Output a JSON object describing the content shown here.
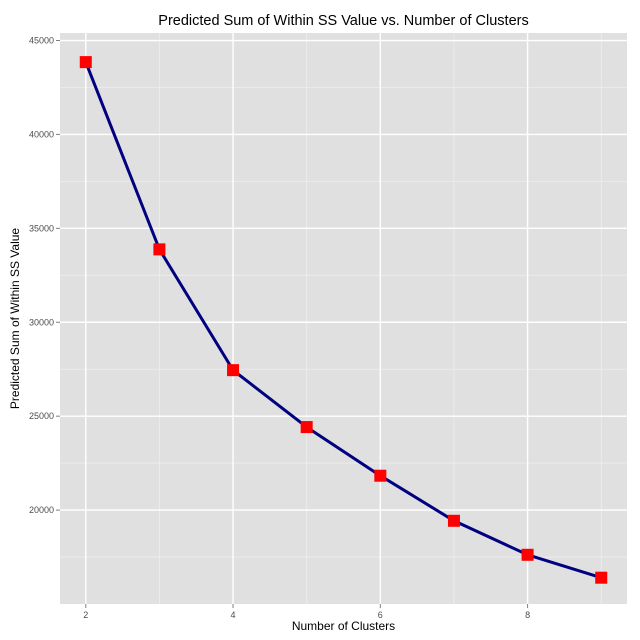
{
  "chart_data": {
    "type": "line",
    "title": "Predicted Sum of Within SS Value vs. Number of Clusters",
    "xlabel": "Number of Clusters",
    "ylabel": "Predicted Sum of Within SS Value",
    "x": [
      2,
      3,
      4,
      5,
      6,
      7,
      8,
      9
    ],
    "series": [
      {
        "values": [
          43850,
          33880,
          27450,
          24420,
          21830,
          19430,
          17620,
          16400
        ]
      }
    ],
    "xlim": [
      1.65,
      9.35
    ],
    "ylim": [
      15000,
      45400
    ],
    "x_ticks": [
      2,
      4,
      6,
      8
    ],
    "x_tick_labels": [
      "2",
      "4",
      "6",
      "8"
    ],
    "y_ticks": [
      20000,
      25000,
      30000,
      35000,
      40000,
      45000
    ],
    "y_tick_labels": [
      "20000",
      "25000",
      "30000",
      "35000",
      "40000",
      "45000"
    ],
    "x_minor_ticks": [
      3,
      5,
      7,
      9
    ],
    "y_minor_ticks": [
      17500,
      22500,
      27500,
      32500,
      37500,
      42500
    ],
    "grid": true,
    "legend": "none",
    "colors": {
      "panel_background": "#e0e0e0",
      "grid_major": "#ffffff",
      "grid_minor": "#eeeeee",
      "line": "#000080",
      "marker": "#ff0000"
    }
  }
}
